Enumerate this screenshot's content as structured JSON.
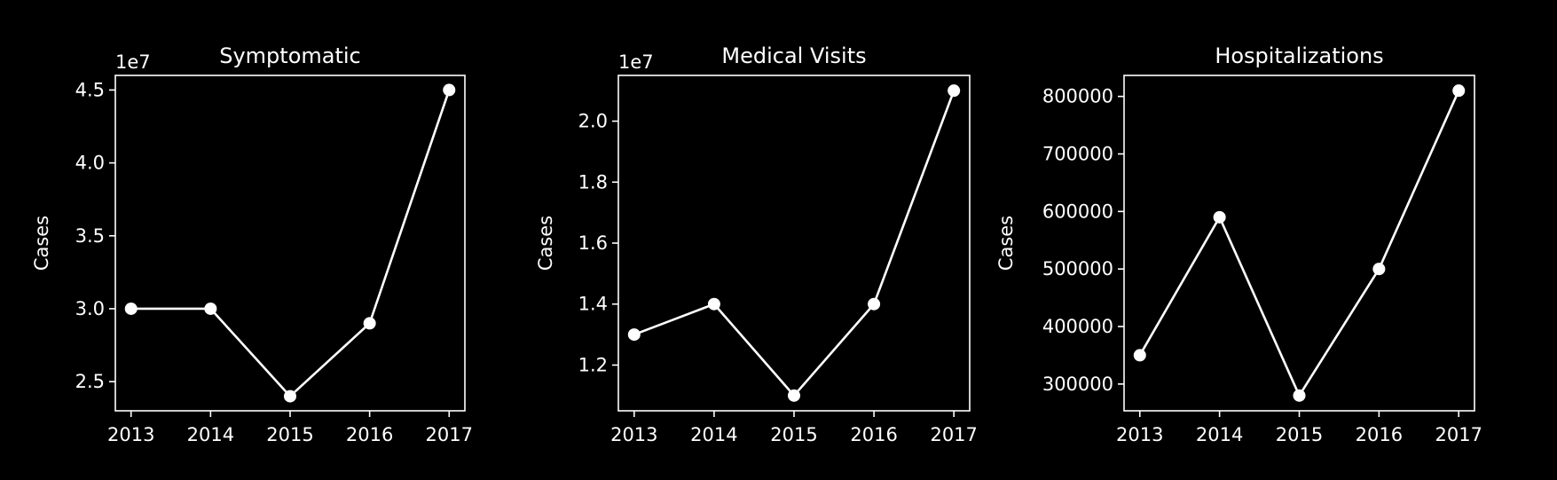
{
  "colors": {
    "background": "#000000",
    "foreground": "#ffffff"
  },
  "chart_data": [
    {
      "type": "line",
      "title": "Symptomatic",
      "ylabel": "Cases",
      "xlabel": "",
      "offset_label": "1e7",
      "x": [
        "2013",
        "2014",
        "2015",
        "2016",
        "2017"
      ],
      "values": [
        30000000,
        30000000,
        24000000,
        29000000,
        45000000
      ],
      "ylim": [
        23000000,
        46000000
      ],
      "yticks": [
        25000000,
        30000000,
        35000000,
        40000000,
        45000000
      ],
      "ytick_labels": [
        "2.5",
        "3.0",
        "3.5",
        "4.0",
        "4.5"
      ],
      "grid": false
    },
    {
      "type": "line",
      "title": "Medical Visits",
      "ylabel": "Cases",
      "xlabel": "",
      "offset_label": "1e7",
      "x": [
        "2013",
        "2014",
        "2015",
        "2016",
        "2017"
      ],
      "values": [
        13000000,
        14000000,
        11000000,
        14000000,
        21000000
      ],
      "ylim": [
        10500000,
        21500000
      ],
      "yticks": [
        12000000,
        14000000,
        16000000,
        18000000,
        20000000
      ],
      "ytick_labels": [
        "1.2",
        "1.4",
        "1.6",
        "1.8",
        "2.0"
      ],
      "grid": false
    },
    {
      "type": "line",
      "title": "Hospitalizations",
      "ylabel": "Cases",
      "xlabel": "",
      "offset_label": "",
      "x": [
        "2013",
        "2014",
        "2015",
        "2016",
        "2017"
      ],
      "values": [
        350000,
        590000,
        280000,
        500000,
        810000
      ],
      "ylim": [
        253500,
        836500
      ],
      "yticks": [
        300000,
        400000,
        500000,
        600000,
        700000,
        800000
      ],
      "ytick_labels": [
        "300000",
        "400000",
        "500000",
        "600000",
        "700000",
        "800000"
      ],
      "grid": false
    }
  ]
}
